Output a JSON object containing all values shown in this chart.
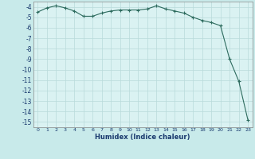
{
  "x": [
    0,
    1,
    2,
    3,
    4,
    5,
    6,
    7,
    8,
    9,
    10,
    11,
    12,
    13,
    14,
    15,
    16,
    17,
    18,
    19,
    20,
    21,
    22,
    23
  ],
  "y": [
    -4.5,
    -4.1,
    -3.9,
    -4.1,
    -4.4,
    -4.9,
    -4.9,
    -4.6,
    -4.4,
    -4.3,
    -4.3,
    -4.3,
    -4.2,
    -3.9,
    -4.2,
    -4.4,
    -4.6,
    -5.0,
    -5.3,
    -5.5,
    -5.8,
    -9.0,
    -11.1,
    -14.8
  ],
  "xlabel": "Humidex (Indice chaleur)",
  "xlim": [
    -0.5,
    23.5
  ],
  "ylim": [
    -15.5,
    -3.5
  ],
  "yticks": [
    -4,
    -5,
    -6,
    -7,
    -8,
    -9,
    -10,
    -11,
    -12,
    -13,
    -14,
    -15
  ],
  "xticks": [
    0,
    1,
    2,
    3,
    4,
    5,
    6,
    7,
    8,
    9,
    10,
    11,
    12,
    13,
    14,
    15,
    16,
    17,
    18,
    19,
    20,
    21,
    22,
    23
  ],
  "line_color": "#2d6b5e",
  "bg_color": "#c8eaea",
  "plot_bg": "#daf2f2",
  "grid_color": "#b8dada"
}
